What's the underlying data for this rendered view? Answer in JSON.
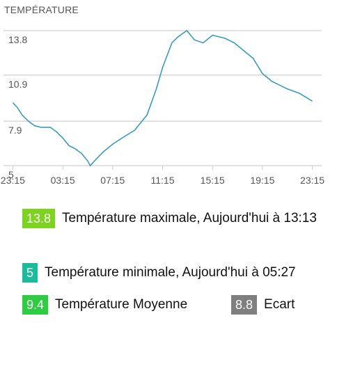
{
  "chart_data": {
    "type": "line",
    "title": "TEMPÉRATURE",
    "x_tick_labels": [
      "23:15",
      "03:15",
      "07:15",
      "11:15",
      "15:15",
      "19:15",
      "23:15"
    ],
    "x_tick_hours": [
      -0.75,
      3.25,
      7.25,
      11.25,
      15.25,
      19.25,
      23.25
    ],
    "y_ticks": [
      5,
      7.9,
      10.9,
      13.8
    ],
    "ylim": [
      5,
      13.8
    ],
    "xlim": [
      -1.5,
      24
    ],
    "line_color": "#3a9ac4",
    "points": [
      [
        -0.75,
        9.1
      ],
      [
        -0.4,
        8.8
      ],
      [
        0,
        8.3
      ],
      [
        0.5,
        7.9
      ],
      [
        1,
        7.6
      ],
      [
        1.5,
        7.5
      ],
      [
        2.25,
        7.5
      ],
      [
        2.75,
        7.2
      ],
      [
        3.25,
        6.8
      ],
      [
        3.75,
        6.3
      ],
      [
        4.25,
        6.1
      ],
      [
        4.75,
        5.8
      ],
      [
        5.25,
        5.3
      ],
      [
        5.45,
        5.0
      ],
      [
        5.9,
        5.4
      ],
      [
        6.5,
        5.9
      ],
      [
        7.25,
        6.4
      ],
      [
        8,
        6.8
      ],
      [
        9,
        7.3
      ],
      [
        10,
        8.3
      ],
      [
        10.75,
        10.0
      ],
      [
        11.25,
        11.4
      ],
      [
        12,
        13.0
      ],
      [
        12.5,
        13.4
      ],
      [
        13.2,
        13.8
      ],
      [
        13.8,
        13.2
      ],
      [
        14.5,
        13.0
      ],
      [
        15.25,
        13.5
      ],
      [
        16.25,
        13.3
      ],
      [
        17,
        13.0
      ],
      [
        17.75,
        12.5
      ],
      [
        18.5,
        12.0
      ],
      [
        19.25,
        11.0
      ],
      [
        20,
        10.5
      ],
      [
        21.25,
        10.0
      ],
      [
        22.25,
        9.7
      ],
      [
        23.25,
        9.2
      ]
    ]
  },
  "stats": {
    "max": {
      "value": "13.8",
      "label": "Température maximale, Aujourd'hui à 13:13",
      "color": "#7ed321"
    },
    "min": {
      "value": "5",
      "label": "Température minimale, Aujourd'hui à 05:27",
      "color": "#1abc9c"
    },
    "avg": {
      "value": "9.4",
      "label": "Température Moyenne",
      "color": "#2ecc40"
    },
    "range": {
      "value": "8.8",
      "label": "Ecart",
      "color": "#7f7f7f"
    }
  }
}
